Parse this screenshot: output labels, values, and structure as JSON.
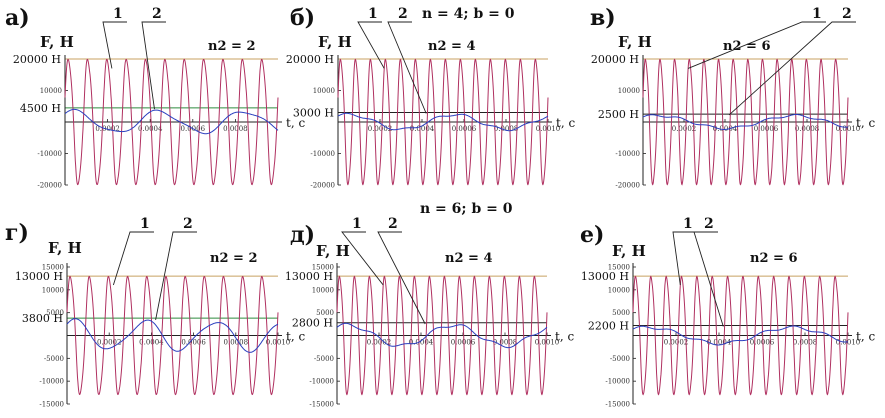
{
  "headers": [
    {
      "id": "h1",
      "text": "n = 4; b = 0"
    },
    {
      "id": "h2",
      "text": "n = 6; b = 0"
    }
  ],
  "chart_data": [
    {
      "type": "line",
      "panel": "а)",
      "n2_label": "n2 = 2",
      "ylabel": "F, Н",
      "xlabel": "t, c",
      "xlim": [
        0,
        0.001
      ],
      "ylim": [
        -20000,
        20000
      ],
      "amplitude_label": "20000 Н",
      "amplitude": 20000,
      "mean_label": "4500 Н",
      "mean": 4500,
      "yticks": [
        10000,
        -10000,
        -20000
      ],
      "ytick_labels": [
        "10000",
        "-10000",
        "-20000"
      ],
      "xticks": [
        0.0002,
        0.0004,
        0.0006,
        0.0008
      ],
      "xtick_labels": [
        "0.0002",
        "0.0004",
        "0.0006",
        "0.0008"
      ],
      "callouts": [
        "1",
        "2"
      ],
      "series": [
        {
          "id": "1",
          "color": "#b03060",
          "oscillations": 11
        },
        {
          "id": "2",
          "color": "#2b3fbf",
          "slow_amplitude": 4000,
          "slow_cycles": 2.5
        }
      ]
    },
    {
      "type": "line",
      "panel": "б)",
      "n2_label": "n2 = 4",
      "ylabel": "F, Н",
      "xlabel": "t, c",
      "xlim": [
        0,
        0.001
      ],
      "ylim": [
        -20000,
        20000
      ],
      "amplitude_label": "20000 Н",
      "amplitude": 20000,
      "mean_label": "3000 Н",
      "mean": 3000,
      "yticks": [
        10000,
        -10000,
        -20000
      ],
      "ytick_labels": [
        "10000",
        "-10000",
        "-20000"
      ],
      "xticks": [
        0.0002,
        0.0004,
        0.0006,
        0.0008,
        0.001
      ],
      "xtick_labels": [
        "0.0002",
        "0.0004",
        "0.0006",
        "0.0008",
        "0.0010"
      ],
      "callouts": [
        "1",
        "2"
      ],
      "series": [
        {
          "id": "1",
          "color": "#b03060",
          "oscillations": 14
        },
        {
          "id": "2",
          "color": "#2b3fbf",
          "slow_amplitude": 2800,
          "slow_cycles": 2
        }
      ]
    },
    {
      "type": "line",
      "panel": "в)",
      "n2_label": "n2 = 6",
      "ylabel": "F, Н",
      "xlabel": "t, c",
      "xlim": [
        0,
        0.001
      ],
      "ylim": [
        -20000,
        20000
      ],
      "amplitude_label": "20000 Н",
      "amplitude": 20000,
      "mean_label": "2500 Н",
      "mean": 2500,
      "yticks": [
        10000,
        -10000,
        -20000
      ],
      "ytick_labels": [
        "10000",
        "-10000",
        "-20000"
      ],
      "xticks": [
        0.0002,
        0.0004,
        0.0006,
        0.0008,
        0.001
      ],
      "xtick_labels": [
        "0.0002",
        "0.0004",
        "0.0006",
        "0.0008",
        "0.0010"
      ],
      "callouts": [
        "1",
        "2"
      ],
      "series": [
        {
          "id": "1",
          "color": "#b03060",
          "oscillations": 14
        },
        {
          "id": "2",
          "color": "#2b3fbf",
          "slow_amplitude": 2400,
          "slow_cycles": 1.5
        }
      ]
    },
    {
      "type": "line",
      "panel": "г)",
      "n2_label": "n2 = 2",
      "ylabel": "F, Н",
      "xlabel": "t, c",
      "xlim": [
        0,
        0.001
      ],
      "ylim": [
        -15000,
        15000
      ],
      "amplitude_label": "13000 Н",
      "amplitude": 13000,
      "mean_label": "3800 Н",
      "mean": 3800,
      "yticks": [
        15000,
        10000,
        5000,
        -5000,
        -10000,
        -15000
      ],
      "ytick_labels": [
        "15000",
        "10000",
        "5000",
        "-5000",
        "-10000",
        "-15000"
      ],
      "xticks": [
        0.0002,
        0.0004,
        0.0006,
        0.0008,
        0.001
      ],
      "xtick_labels": [
        "0.0002",
        "0.0004",
        "0.0006",
        "0.0008",
        "0.0010"
      ],
      "callouts": [
        "1",
        "2"
      ],
      "series": [
        {
          "id": "1",
          "color": "#b03060",
          "oscillations": 11
        },
        {
          "id": "2",
          "color": "#2b3fbf",
          "slow_amplitude": 3700,
          "slow_cycles": 3
        }
      ]
    },
    {
      "type": "line",
      "panel": "д)",
      "n2_label": "n2 = 4",
      "ylabel": "F, Н",
      "xlabel": "t, c",
      "xlim": [
        0,
        0.001
      ],
      "ylim": [
        -15000,
        15000
      ],
      "amplitude_label": "13000 Н",
      "amplitude": 13000,
      "mean_label": "2800 Н",
      "mean": 2800,
      "yticks": [
        15000,
        10000,
        5000,
        -5000,
        -10000,
        -15000
      ],
      "ytick_labels": [
        "15000",
        "10000",
        "5000",
        "-5000",
        "-10000",
        "-15000"
      ],
      "xticks": [
        0.0002,
        0.0004,
        0.0006,
        0.0008,
        0.001
      ],
      "xtick_labels": [
        "0.0002",
        "0.0004",
        "0.0006",
        "0.0008",
        "0.0010"
      ],
      "callouts": [
        "1",
        "2"
      ],
      "series": [
        {
          "id": "1",
          "color": "#b03060",
          "oscillations": 14
        },
        {
          "id": "2",
          "color": "#2b3fbf",
          "slow_amplitude": 2700,
          "slow_cycles": 2
        }
      ]
    },
    {
      "type": "line",
      "panel": "е)",
      "n2_label": "n2 = 6",
      "ylabel": "F, Н",
      "xlabel": "t, c",
      "xlim": [
        0,
        0.001
      ],
      "ylim": [
        -15000,
        15000
      ],
      "amplitude_label": "13000 Н",
      "amplitude": 13000,
      "mean_label": "2200 Н",
      "mean": 2200,
      "yticks": [
        15000,
        10000,
        5000,
        -5000,
        -10000,
        -15000
      ],
      "ytick_labels": [
        "15000",
        "10000",
        "5000",
        "-5000",
        "-10000",
        "-15000"
      ],
      "xticks": [
        0.0002,
        0.0004,
        0.0006,
        0.0008,
        0.001
      ],
      "xtick_labels": [
        "0.0002",
        "0.0004",
        "0.0006",
        "0.0008",
        "0.0010"
      ],
      "callouts": [
        "1",
        "2"
      ],
      "series": [
        {
          "id": "1",
          "color": "#b03060",
          "oscillations": 14
        },
        {
          "id": "2",
          "color": "#2b3fbf",
          "slow_amplitude": 2100,
          "slow_cycles": 1.5
        }
      ]
    }
  ],
  "colors": {
    "amplitude_line": "#c8a060",
    "mean_line": "#2e8b3e",
    "axis": "#222222"
  }
}
